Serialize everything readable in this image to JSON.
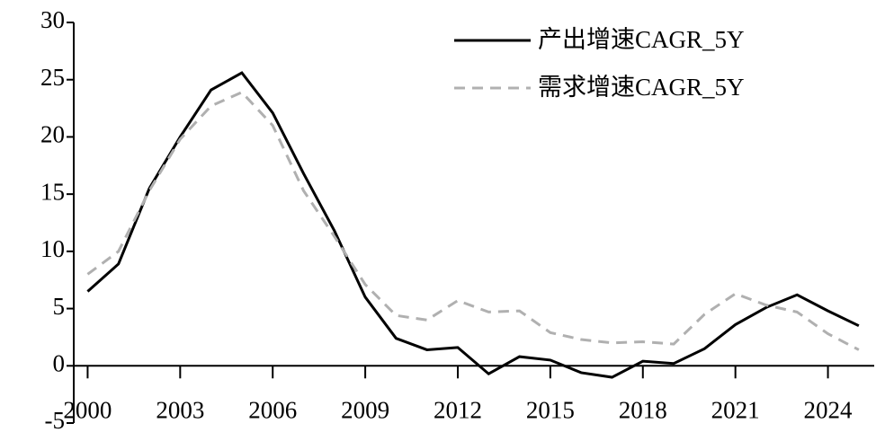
{
  "chart_data": {
    "type": "line",
    "x": [
      2000,
      2001,
      2002,
      2003,
      2004,
      2005,
      2006,
      2007,
      2008,
      2009,
      2010,
      2011,
      2012,
      2013,
      2014,
      2015,
      2016,
      2017,
      2018,
      2019,
      2020,
      2021,
      2022,
      2023,
      2024,
      2025
    ],
    "series": [
      {
        "name": "产出增速CAGR_5Y",
        "color": "#000000",
        "dash": "solid",
        "values": [
          6.5,
          8.9,
          15.5,
          20,
          24.1,
          25.6,
          22.1,
          16.8,
          11.8,
          6,
          2.4,
          1.4,
          1.6,
          -0.7,
          0.8,
          0.5,
          -0.6,
          -1,
          0.4,
          0.2,
          1.5,
          3.6,
          5.1,
          6.2,
          4.8,
          3.5
        ]
      },
      {
        "name": "需求增速CAGR_5Y",
        "color": "#b0b0b0",
        "dash": "dashed",
        "values": [
          8,
          10,
          15.3,
          19.8,
          22.7,
          23.9,
          21,
          15.3,
          11.3,
          7.1,
          4.4,
          4,
          5.7,
          4.7,
          4.8,
          2.9,
          2.3,
          2,
          2.1,
          1.9,
          4.5,
          6.3,
          5.3,
          4.7,
          2.8,
          1.4
        ]
      }
    ],
    "xlim": [
      1999.55,
      2025.5
    ],
    "xticks": [
      2000,
      2003,
      2006,
      2009,
      2012,
      2015,
      2018,
      2021,
      2024
    ],
    "ylim": [
      -5,
      30
    ],
    "yticks": [
      -5,
      0,
      5,
      10,
      15,
      20,
      25,
      30
    ],
    "legend": "upper right"
  }
}
